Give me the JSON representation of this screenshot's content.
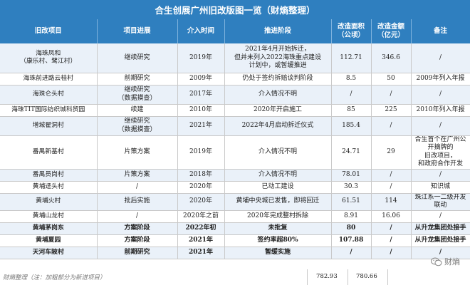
{
  "title": "合生创展广州旧改版图一览（财熵整理）",
  "headers": [
    "旧改项目",
    "项目进展",
    "介入时间",
    "推进阶段",
    "改造面积\n（公顷）",
    "改造金额\n（亿元）",
    "备注"
  ],
  "rows": [
    {
      "project": "海珠凤和\n（康乐村、鹭江村）",
      "progress": "继续研究",
      "time": "2019年",
      "stage": "2021年4月开始拆迁，\n但并未列入2022海珠重点建设\n计划中，或暂缓推进",
      "area": "112.71",
      "amount": "346.6",
      "note": "/",
      "bold": false
    },
    {
      "project": "海珠前进路云桂村",
      "progress": "前期研究",
      "time": "2009年",
      "stage": "仍处于签约拆赔谈判阶段",
      "area": "8.5",
      "amount": "50",
      "note": "2009年列入年报",
      "bold": false
    },
    {
      "project": "海珠仑头村",
      "progress": "继续研究\n（数据摸查）",
      "time": "2017年",
      "stage": "介入情况不明",
      "area": "/",
      "amount": "/",
      "note": "/",
      "bold": false
    },
    {
      "project": "海珠TIT国际纺织城科贸园",
      "progress": "续建",
      "time": "2010年",
      "stage": "2020年开启施工",
      "area": "85",
      "amount": "225",
      "note": "2010年列入年报",
      "bold": false
    },
    {
      "project": "增城翟洞村",
      "progress": "继续研究\n（数据摸查）",
      "time": "2021年",
      "stage": "2022年4月启动拆迁仪式",
      "area": "185.4",
      "amount": "/",
      "note": "/",
      "bold": false
    },
    {
      "project": "番禺新基村",
      "progress": "片策方案",
      "time": "2019年",
      "stage": "介入情况不明",
      "area": "24.71",
      "amount": "29",
      "note": "合生首个在广州公开摘牌的\n旧改项目，\n和政府合作开发",
      "bold": false
    },
    {
      "project": "番禺员岗村",
      "progress": "片策方案",
      "time": "2018年",
      "stage": "介入情况不明",
      "area": "78.01",
      "amount": "/",
      "note": "/",
      "bold": false
    },
    {
      "project": "黄埔迳头村",
      "progress": "/",
      "time": "2020年",
      "stage": "已动工建设",
      "area": "30.3",
      "amount": "/",
      "note": "知识城",
      "bold": false
    },
    {
      "project": "黄埔火村",
      "progress": "批后实施",
      "time": "2020年",
      "stage": "黄埔中央城已发售，即将回迁",
      "area": "61.51",
      "amount": "114",
      "note": "珠江系一二级开发联动",
      "bold": false
    },
    {
      "project": "黄埔山龙村",
      "progress": "/",
      "time": "2020年之前",
      "stage": "2020年完成整村拆除",
      "area": "8.91",
      "amount": "16.06",
      "note": "/",
      "bold": false
    },
    {
      "project": "黄埔茅岗东",
      "progress": "方案阶段",
      "time": "2022年初",
      "stage": "未批复",
      "area": "80",
      "amount": "/",
      "note": "从升龙集团处接手",
      "bold": true
    },
    {
      "project": "黄埔夏园",
      "progress": "方案阶段",
      "time": "2021年",
      "stage": "签约率超80%",
      "area": "107.88",
      "amount": "/",
      "note": "从升龙集团处接手",
      "bold": true
    },
    {
      "project": "天河车陂村",
      "progress": "前期研究",
      "time": "2021年",
      "stage": "暂缓实施",
      "area": "/",
      "amount": "/",
      "note": "/",
      "bold": true
    }
  ],
  "footer": {
    "note": "财熵整理（注：加粗部分为新进项目）",
    "total_area": "782.93",
    "total_amount": "780.66"
  },
  "watermark": "财熵",
  "colors": {
    "header_bg": "#2f7fbf",
    "stripe": "#eaf1f9"
  }
}
